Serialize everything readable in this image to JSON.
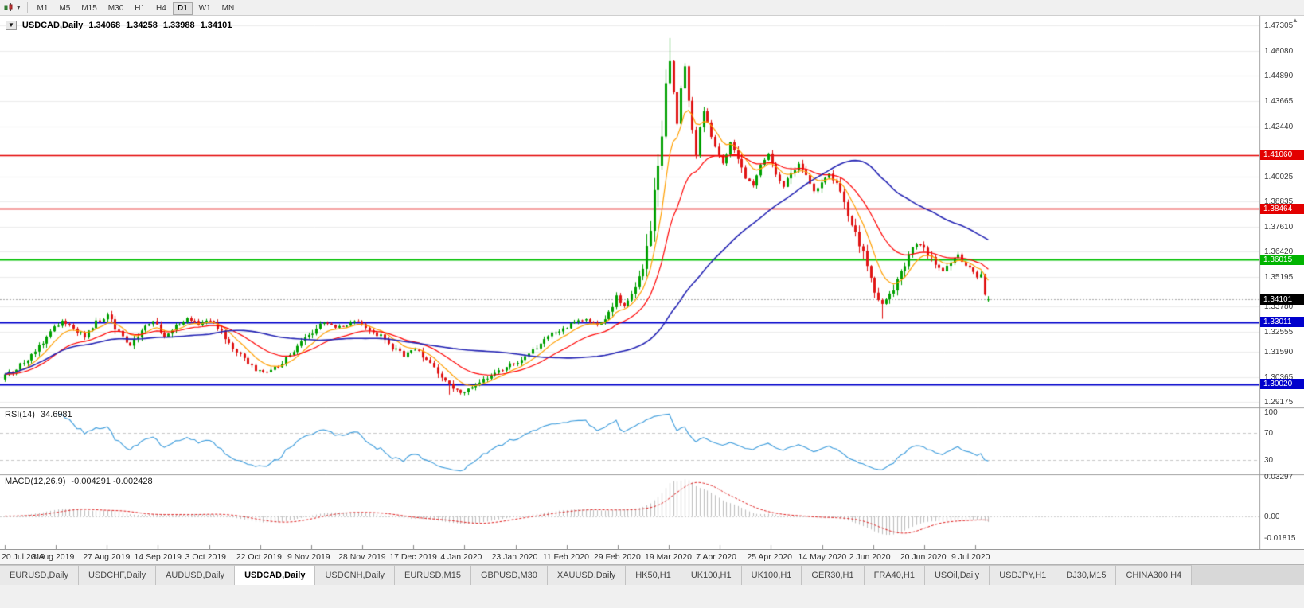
{
  "toolbar": {
    "timeframes": [
      "M1",
      "M5",
      "M15",
      "M30",
      "H1",
      "H4",
      "D1",
      "W1",
      "MN"
    ],
    "active_timeframe": "D1"
  },
  "chart_header": {
    "symbol_period": "USDCAD,Daily",
    "open": "1.34068",
    "high": "1.34258",
    "low": "1.33988",
    "close": "1.34101"
  },
  "price_axis": {
    "grid_labels": [
      "1.47305",
      "1.46080",
      "1.44890",
      "1.43665",
      "1.42440",
      "1.40025",
      "1.38835",
      "1.37610",
      "1.36420",
      "1.35195",
      "1.33780",
      "1.32555",
      "1.31590",
      "1.30365",
      "1.29175"
    ],
    "line_labels": [
      {
        "text": "1.41060",
        "value": 1.4106,
        "color": "#e30000"
      },
      {
        "text": "1.38464",
        "value": 1.38464,
        "color": "#e30000"
      },
      {
        "text": "1.36015",
        "value": 1.36015,
        "color": "#00b400"
      },
      {
        "text": "1.34101",
        "value": 1.34101,
        "color": "#000000"
      },
      {
        "text": "1.33011",
        "value": 1.33011,
        "color": "#0000cc"
      },
      {
        "text": "1.30020",
        "value": 1.3002,
        "color": "#0000cc"
      }
    ]
  },
  "rsi_pane": {
    "name": "RSI(14)",
    "value": "34.6981",
    "axis_labels": [
      {
        "text": "100",
        "value": 100
      },
      {
        "text": "70",
        "value": 70
      },
      {
        "text": "30",
        "value": 30
      }
    ]
  },
  "macd_pane": {
    "name": "MACD(12,26,9)",
    "value": "-0.004291 -0.002428",
    "axis_labels": [
      {
        "text": "0.03297",
        "value": 0.03297
      },
      {
        "text": "0.00",
        "value": 0
      },
      {
        "text": "-0.01815",
        "value": -0.01815
      }
    ]
  },
  "date_axis": [
    "20 Jul 2019",
    "8 Aug 2019",
    "27 Aug 2019",
    "14 Sep 2019",
    "3 Oct 2019",
    "22 Oct 2019",
    "9 Nov 2019",
    "28 Nov 2019",
    "17 Dec 2019",
    "4 Jan 2020",
    "23 Jan 2020",
    "11 Feb 2020",
    "29 Feb 2020",
    "19 Mar 2020",
    "7 Apr 2020",
    "25 Apr 2020",
    "14 May 2020",
    "2 Jun 2020",
    "20 Jun 2020",
    "9 Jul 2020"
  ],
  "tabs": {
    "items": [
      "EURUSD,Daily",
      "USDCHF,Daily",
      "AUDUSD,Daily",
      "USDCAD,Daily",
      "USDCNH,Daily",
      "EURUSD,M15",
      "GBPUSD,M30",
      "XAUUSD,Daily",
      "HK50,H1",
      "UK100,H1",
      "UK100,H1",
      "GER30,H1",
      "FRA40,H1",
      "USOil,Daily",
      "USDJPY,H1",
      "DJ30,M15",
      "CHINA300,H4"
    ],
    "active_index": 3
  },
  "chart_data": {
    "type": "candlestick",
    "symbol": "USDCAD",
    "timeframe": "Daily",
    "ylim": [
      1.289,
      1.4775
    ],
    "candle_count": 260,
    "ohlc_current": {
      "open": 1.34068,
      "high": 1.34258,
      "low": 1.33988,
      "close": 1.34101
    },
    "current_price": 1.34101,
    "horizontal_levels": [
      {
        "price": 1.4106,
        "color": "#e30000",
        "width": 1.5
      },
      {
        "price": 1.38464,
        "color": "#e30000",
        "width": 1.5
      },
      {
        "price": 1.36015,
        "color": "#00c000",
        "width": 1.8
      },
      {
        "price": 1.33011,
        "color": "#0000cc",
        "width": 1.8
      },
      {
        "price": 1.3002,
        "color": "#0000cc",
        "width": 1.8
      }
    ],
    "price_path": [
      [
        0,
        1.3045
      ],
      [
        3,
        1.3075
      ],
      [
        6,
        1.313
      ],
      [
        9,
        1.319
      ],
      [
        12,
        1.3255
      ],
      [
        15,
        1.331
      ],
      [
        18,
        1.327
      ],
      [
        21,
        1.3235
      ],
      [
        24,
        1.33
      ],
      [
        27,
        1.333
      ],
      [
        30,
        1.3245
      ],
      [
        33,
        1.319
      ],
      [
        36,
        1.3265
      ],
      [
        39,
        1.3305
      ],
      [
        42,
        1.323
      ],
      [
        45,
        1.328
      ],
      [
        48,
        1.332
      ],
      [
        51,
        1.329
      ],
      [
        54,
        1.331
      ],
      [
        57,
        1.325
      ],
      [
        60,
        1.318
      ],
      [
        63,
        1.312
      ],
      [
        66,
        1.307
      ],
      [
        69,
        1.3055
      ],
      [
        72,
        1.309
      ],
      [
        75,
        1.314
      ],
      [
        78,
        1.32
      ],
      [
        81,
        1.3255
      ],
      [
        84,
        1.33
      ],
      [
        87,
        1.327
      ],
      [
        90,
        1.329
      ],
      [
        93,
        1.331
      ],
      [
        96,
        1.327
      ],
      [
        99,
        1.323
      ],
      [
        102,
        1.318
      ],
      [
        105,
        1.314
      ],
      [
        108,
        1.317
      ],
      [
        111,
        1.312
      ],
      [
        114,
        1.306
      ],
      [
        117,
        1.3
      ],
      [
        120,
        1.296
      ],
      [
        123,
        1.2985
      ],
      [
        126,
        1.302
      ],
      [
        129,
        1.3055
      ],
      [
        132,
        1.3085
      ],
      [
        135,
        1.311
      ],
      [
        138,
        1.315
      ],
      [
        141,
        1.3195
      ],
      [
        144,
        1.324
      ],
      [
        147,
        1.327
      ],
      [
        150,
        1.33
      ],
      [
        153,
        1.332
      ],
      [
        156,
        1.329
      ],
      [
        159,
        1.334
      ],
      [
        161,
        1.342
      ],
      [
        163,
        1.338
      ],
      [
        165,
        1.344
      ],
      [
        167,
        1.353
      ],
      [
        169,
        1.365
      ],
      [
        171,
        1.39
      ],
      [
        173,
        1.42
      ],
      [
        174,
        1.448
      ],
      [
        175,
        1.456
      ],
      [
        176,
        1.442
      ],
      [
        177,
        1.426
      ],
      [
        178,
        1.442
      ],
      [
        179,
        1.453
      ],
      [
        180,
        1.438
      ],
      [
        181,
        1.422
      ],
      [
        182,
        1.41
      ],
      [
        183,
        1.423
      ],
      [
        184,
        1.433
      ],
      [
        185,
        1.425
      ],
      [
        187,
        1.414
      ],
      [
        189,
        1.406
      ],
      [
        191,
        1.416
      ],
      [
        193,
        1.41
      ],
      [
        195,
        1.401
      ],
      [
        197,
        1.396
      ],
      [
        199,
        1.404
      ],
      [
        201,
        1.411
      ],
      [
        203,
        1.403
      ],
      [
        205,
        1.396
      ],
      [
        207,
        1.401
      ],
      [
        209,
        1.407
      ],
      [
        211,
        1.399
      ],
      [
        213,
        1.393
      ],
      [
        215,
        1.397
      ],
      [
        217,
        1.402
      ],
      [
        219,
        1.395
      ],
      [
        221,
        1.387
      ],
      [
        223,
        1.379
      ],
      [
        225,
        1.368
      ],
      [
        227,
        1.356
      ],
      [
        229,
        1.345
      ],
      [
        231,
        1.339
      ],
      [
        233,
        1.343
      ],
      [
        235,
        1.349
      ],
      [
        237,
        1.358
      ],
      [
        239,
        1.365
      ],
      [
        241,
        1.368
      ],
      [
        243,
        1.363
      ],
      [
        245,
        1.357
      ],
      [
        247,
        1.3545
      ],
      [
        249,
        1.36
      ],
      [
        251,
        1.3625
      ],
      [
        253,
        1.3575
      ],
      [
        255,
        1.355
      ],
      [
        257,
        1.352
      ],
      [
        258,
        1.343
      ],
      [
        259,
        1.34101
      ]
    ],
    "key_extremes": [
      {
        "day": 175,
        "type": "high",
        "price": 1.4668
      },
      {
        "day": 117,
        "type": "low",
        "price": 1.2952
      },
      {
        "day": 231,
        "type": "low",
        "price": 1.3317
      }
    ],
    "moving_averages": [
      {
        "period": 8,
        "method": "ema",
        "color": "#ff9f00",
        "width": 1.2
      },
      {
        "period": 21,
        "method": "ema",
        "color": "#ff0000",
        "width": 1.2
      },
      {
        "period": 55,
        "method": "sma",
        "color": "#2424b4",
        "width": 1.6
      }
    ],
    "indicators": {
      "rsi": {
        "period": 14,
        "current": 34.6981,
        "levels": [
          70,
          30
        ],
        "color": "#3a9bdc"
      },
      "macd": {
        "fast": 12,
        "slow": 26,
        "signal": 9,
        "current_macd": -0.004291,
        "current_signal": -0.002428,
        "histogram_color": "#bdbdbd",
        "signal_color": "#e02020"
      }
    },
    "style": {
      "up": "#00a000",
      "down": "#e01515",
      "grid": "#ebebeb"
    }
  }
}
